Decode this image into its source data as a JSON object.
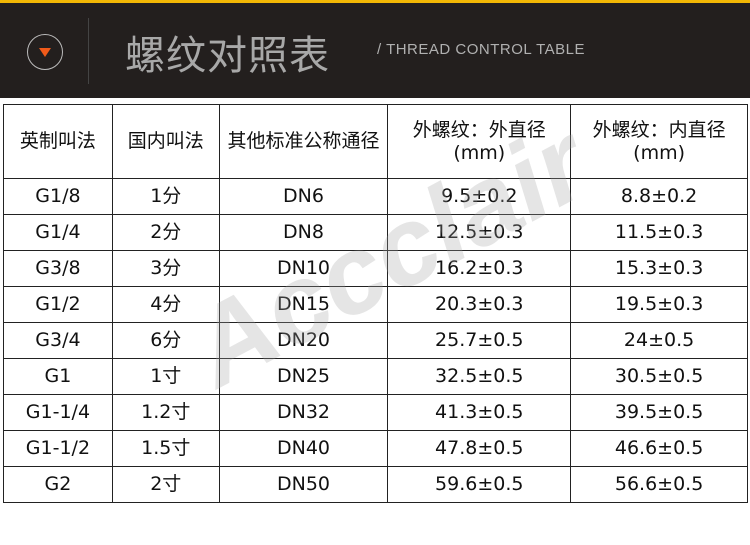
{
  "header": {
    "title": "螺纹对照表",
    "subtitle": "/ THREAD CONTROL TABLE",
    "icon": "chevron-down-circle-icon",
    "accent": "#f05a1a",
    "top_line_color": "#f2b705"
  },
  "watermark": "Accclair",
  "table": {
    "columns": [
      "英制叫法",
      "国内叫法",
      "其他标准公称通径",
      "外螺纹：外直径 (mm)",
      "外螺纹：内直径 (mm)"
    ],
    "rows": [
      [
        "G1/8",
        "1分",
        "DN6",
        "9.5±0.2",
        "8.8±0.2"
      ],
      [
        "G1/4",
        "2分",
        "DN8",
        "12.5±0.3",
        "11.5±0.3"
      ],
      [
        "G3/8",
        "3分",
        "DN10",
        "16.2±0.3",
        "15.3±0.3"
      ],
      [
        "G1/2",
        "4分",
        "DN15",
        "20.3±0.3",
        "19.5±0.3"
      ],
      [
        "G3/4",
        "6分",
        "DN20",
        "25.7±0.5",
        "24±0.5"
      ],
      [
        "G1",
        "1寸",
        "DN25",
        "32.5±0.5",
        "30.5±0.5"
      ],
      [
        "G1-1/4",
        "1.2寸",
        "DN32",
        "41.3±0.5",
        "39.5±0.5"
      ],
      [
        "G1-1/2",
        "1.5寸",
        "DN40",
        "47.8±0.5",
        "46.6±0.5"
      ],
      [
        "G2",
        "2寸",
        "DN50",
        "59.6±0.5",
        "56.6±0.5"
      ]
    ]
  }
}
